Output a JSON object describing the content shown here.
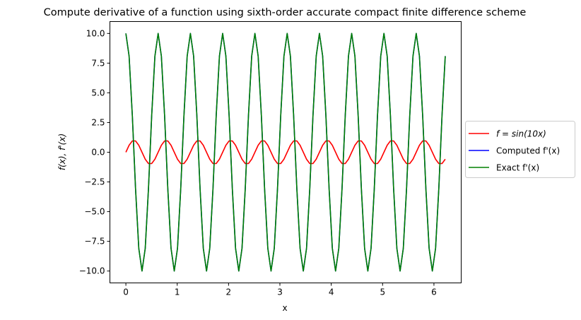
{
  "chart_data": {
    "type": "line",
    "title": "Compute derivative of a function using sixth-order accurate compact finite difference scheme",
    "xlabel": "x",
    "ylabel": "f(x), f'(x)",
    "xlim": [
      -0.311,
      6.531
    ],
    "ylim": [
      -11,
      11
    ],
    "xticks": [
      0,
      1,
      2,
      3,
      4,
      5,
      6
    ],
    "xtick_labels": [
      "0",
      "1",
      "2",
      "3",
      "4",
      "5",
      "6"
    ],
    "yticks": [
      -10,
      -7.5,
      -5,
      -2.5,
      0,
      2.5,
      5,
      7.5,
      10
    ],
    "ytick_labels": [
      "−10.0",
      "−7.5",
      "−5.0",
      "−2.5",
      "0.0",
      "2.5",
      "5.0",
      "7.5",
      "10.0"
    ],
    "grid": false,
    "legend_position": "center-right-outside",
    "x": [
      0,
      0.0628,
      0.1257,
      0.1885,
      0.2513,
      0.3142,
      0.377,
      0.4398,
      0.5027,
      0.5655,
      0.6283,
      0.6912,
      0.754,
      0.8168,
      0.8796,
      0.9425,
      1.0053,
      1.0681,
      1.131,
      1.1938,
      1.2566,
      1.3195,
      1.3823,
      1.4451,
      1.508,
      1.5708,
      1.6336,
      1.6965,
      1.7593,
      1.8221,
      1.885,
      1.9478,
      2.0106,
      2.0735,
      2.1363,
      2.1991,
      2.2619,
      2.3248,
      2.3876,
      2.4504,
      2.5133,
      2.5761,
      2.6389,
      2.7018,
      2.7646,
      2.8274,
      2.8903,
      2.9531,
      3.0159,
      3.0788,
      3.1416,
      3.2044,
      3.2673,
      3.3301,
      3.3929,
      3.4558,
      3.5186,
      3.5814,
      3.6442,
      3.7071,
      3.7699,
      3.8327,
      3.8956,
      3.9584,
      4.0212,
      4.0841,
      4.1469,
      4.2097,
      4.2726,
      4.3354,
      4.3982,
      4.4611,
      4.5239,
      4.5867,
      4.6496,
      4.7124,
      4.7752,
      4.8381,
      4.9009,
      4.9637,
      5.0265,
      5.0894,
      5.1522,
      5.215,
      5.2779,
      5.3407,
      5.4035,
      5.4664,
      5.5292,
      5.592,
      5.6549,
      5.7177,
      5.7805,
      5.8434,
      5.9062,
      5.969,
      6.0319,
      6.0947,
      6.1575,
      6.2204
    ],
    "series": [
      {
        "name": "f = sin(10x)",
        "color": "#ff0000",
        "values": [
          0,
          0.588,
          0.951,
          0.951,
          0.588,
          0,
          -0.588,
          -0.951,
          -0.951,
          -0.588,
          0,
          0.588,
          0.951,
          0.951,
          0.588,
          0,
          -0.588,
          -0.951,
          -0.951,
          -0.588,
          0,
          0.588,
          0.951,
          0.951,
          0.588,
          0,
          -0.588,
          -0.951,
          -0.951,
          -0.588,
          0,
          0.588,
          0.951,
          0.951,
          0.588,
          0,
          -0.588,
          -0.951,
          -0.951,
          -0.588,
          0,
          0.588,
          0.951,
          0.951,
          0.588,
          0,
          -0.588,
          -0.951,
          -0.951,
          -0.588,
          0,
          0.588,
          0.951,
          0.951,
          0.588,
          0,
          -0.588,
          -0.951,
          -0.951,
          -0.588,
          0,
          0.588,
          0.951,
          0.951,
          0.588,
          0,
          -0.588,
          -0.951,
          -0.951,
          -0.588,
          0,
          0.588,
          0.951,
          0.951,
          0.588,
          0,
          -0.588,
          -0.951,
          -0.951,
          -0.588,
          0,
          0.588,
          0.951,
          0.951,
          0.588,
          0,
          -0.588,
          -0.951,
          -0.951,
          -0.588,
          0,
          0.588,
          0.951,
          0.951,
          0.588,
          0,
          -0.588,
          -0.951,
          -0.951,
          -0.588
        ]
      },
      {
        "name": "Computed f'(x)",
        "color": "#0000ff",
        "values": [
          10,
          8.09,
          3.09,
          -3.09,
          -8.09,
          -10,
          -8.09,
          -3.09,
          3.09,
          8.09,
          10,
          8.09,
          3.09,
          -3.09,
          -8.09,
          -10,
          -8.09,
          -3.09,
          3.09,
          8.09,
          10,
          8.09,
          3.09,
          -3.09,
          -8.09,
          -10,
          -8.09,
          -3.09,
          3.09,
          8.09,
          10,
          8.09,
          3.09,
          -3.09,
          -8.09,
          -10,
          -8.09,
          -3.09,
          3.09,
          8.09,
          10,
          8.09,
          3.09,
          -3.09,
          -8.09,
          -10,
          -8.09,
          -3.09,
          3.09,
          8.09,
          10,
          8.09,
          3.09,
          -3.09,
          -8.09,
          -10,
          -8.09,
          -3.09,
          3.09,
          8.09,
          10,
          8.09,
          3.09,
          -3.09,
          -8.09,
          -10,
          -8.09,
          -3.09,
          3.09,
          8.09,
          10,
          8.09,
          3.09,
          -3.09,
          -8.09,
          -10,
          -8.09,
          -3.09,
          3.09,
          8.09,
          10,
          8.09,
          3.09,
          -3.09,
          -8.09,
          -10,
          -8.09,
          -3.09,
          3.09,
          8.09,
          10,
          8.09,
          3.09,
          -3.09,
          -8.09,
          -10,
          -8.09,
          -3.09,
          3.09,
          8.09
        ]
      },
      {
        "name": "Exact f'(x)",
        "color": "#008000",
        "values": [
          10,
          8.09,
          3.09,
          -3.09,
          -8.09,
          -10,
          -8.09,
          -3.09,
          3.09,
          8.09,
          10,
          8.09,
          3.09,
          -3.09,
          -8.09,
          -10,
          -8.09,
          -3.09,
          3.09,
          8.09,
          10,
          8.09,
          3.09,
          -3.09,
          -8.09,
          -10,
          -8.09,
          -3.09,
          3.09,
          8.09,
          10,
          8.09,
          3.09,
          -3.09,
          -8.09,
          -10,
          -8.09,
          -3.09,
          3.09,
          8.09,
          10,
          8.09,
          3.09,
          -3.09,
          -8.09,
          -10,
          -8.09,
          -3.09,
          3.09,
          8.09,
          10,
          8.09,
          3.09,
          -3.09,
          -8.09,
          -10,
          -8.09,
          -3.09,
          3.09,
          8.09,
          10,
          8.09,
          3.09,
          -3.09,
          -8.09,
          -10,
          -8.09,
          -3.09,
          3.09,
          8.09,
          10,
          8.09,
          3.09,
          -3.09,
          -8.09,
          -10,
          -8.09,
          -3.09,
          3.09,
          8.09,
          10,
          8.09,
          3.09,
          -3.09,
          -8.09,
          -10,
          -8.09,
          -3.09,
          3.09,
          8.09,
          10,
          8.09,
          3.09,
          -3.09,
          -8.09,
          -10,
          -8.09,
          -3.09,
          3.09,
          8.09
        ]
      }
    ]
  }
}
